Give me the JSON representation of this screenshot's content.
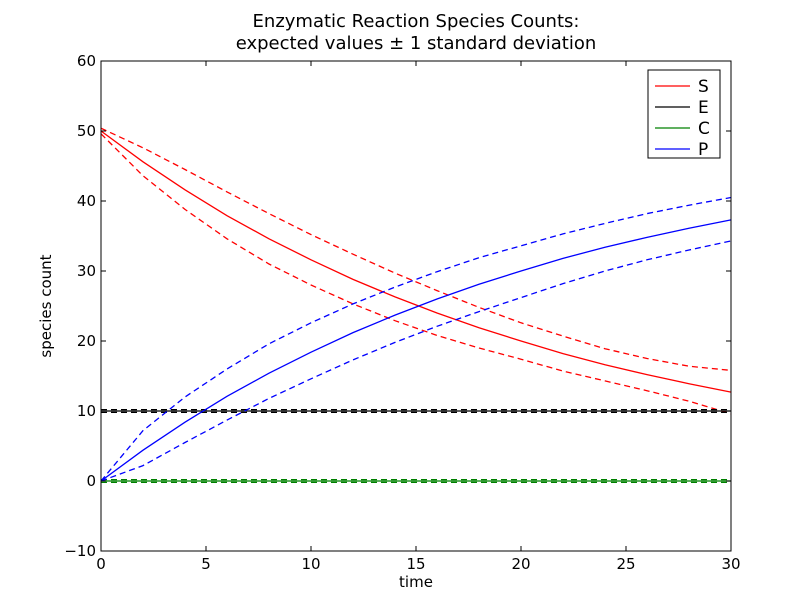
{
  "chart_data": {
    "type": "line",
    "title_line1": "Enzymatic Reaction Species Counts:",
    "title_line2": "expected values ± 1 standard deviation",
    "xlabel": "time",
    "ylabel": "species count",
    "xlim": [
      0,
      30
    ],
    "ylim": [
      -10,
      60
    ],
    "xticks": [
      0,
      5,
      10,
      15,
      20,
      25,
      30
    ],
    "yticks": [
      -10,
      0,
      10,
      20,
      30,
      40,
      50,
      60
    ],
    "yticks_labels": [
      "−10",
      "0",
      "10",
      "20",
      "30",
      "40",
      "50",
      "60"
    ],
    "grid": false,
    "legend_position": "top-right",
    "x": [
      0,
      2,
      4,
      6,
      8,
      10,
      12,
      14,
      16,
      18,
      20,
      22,
      24,
      26,
      28,
      30
    ],
    "series": [
      {
        "name": "S",
        "color": "#ff0000",
        "mean": [
          50.0,
          45.6,
          41.6,
          37.9,
          34.6,
          31.6,
          28.8,
          26.3,
          24.0,
          21.9,
          20.0,
          18.2,
          16.6,
          15.2,
          13.9,
          12.7
        ],
        "upper": [
          50.4,
          47.6,
          44.5,
          41.3,
          38.2,
          35.2,
          32.4,
          29.7,
          27.2,
          24.8,
          22.6,
          20.7,
          18.9,
          17.5,
          16.4,
          15.8
        ],
        "lower": [
          49.6,
          43.6,
          38.8,
          34.6,
          31.0,
          28.0,
          25.3,
          22.9,
          20.8,
          19.0,
          17.4,
          15.7,
          14.3,
          12.9,
          11.4,
          9.6
        ]
      },
      {
        "name": "E",
        "color": "#000000",
        "mean": [
          10.0,
          10.0,
          10.0,
          10.0,
          10.0,
          10.0,
          10.0,
          10.0,
          10.0,
          10.0,
          10.0,
          10.0,
          10.0,
          10.0,
          10.0,
          10.0
        ],
        "upper": [
          10.2,
          10.2,
          10.2,
          10.2,
          10.2,
          10.2,
          10.2,
          10.2,
          10.2,
          10.2,
          10.2,
          10.2,
          10.2,
          10.2,
          10.2,
          10.2
        ],
        "lower": [
          9.8,
          9.8,
          9.8,
          9.8,
          9.8,
          9.8,
          9.8,
          9.8,
          9.8,
          9.8,
          9.8,
          9.8,
          9.8,
          9.8,
          9.8,
          9.8
        ]
      },
      {
        "name": "C",
        "color": "#008000",
        "mean": [
          0.0,
          0.0,
          0.0,
          0.0,
          0.0,
          0.0,
          0.0,
          0.0,
          0.0,
          0.0,
          0.0,
          0.0,
          0.0,
          0.0,
          0.0,
          0.0
        ],
        "upper": [
          0.2,
          0.2,
          0.2,
          0.2,
          0.2,
          0.2,
          0.2,
          0.2,
          0.2,
          0.2,
          0.2,
          0.2,
          0.2,
          0.2,
          0.2,
          0.2
        ],
        "lower": [
          -0.2,
          -0.2,
          -0.2,
          -0.2,
          -0.2,
          -0.2,
          -0.2,
          -0.2,
          -0.2,
          -0.2,
          -0.2,
          -0.2,
          -0.2,
          -0.2,
          -0.2,
          -0.2
        ]
      },
      {
        "name": "P",
        "color": "#0000ff",
        "mean": [
          0.0,
          4.4,
          8.4,
          12.1,
          15.4,
          18.4,
          21.2,
          23.7,
          26.0,
          28.1,
          30.0,
          31.8,
          33.4,
          34.8,
          36.1,
          37.3
        ],
        "upper": [
          0.0,
          7.2,
          12.0,
          16.0,
          19.6,
          22.6,
          25.3,
          27.7,
          29.9,
          31.9,
          33.6,
          35.3,
          36.8,
          38.2,
          39.4,
          40.5
        ],
        "lower": [
          0.0,
          2.2,
          5.5,
          8.7,
          11.8,
          14.6,
          17.3,
          19.8,
          22.1,
          24.2,
          26.2,
          28.2,
          30.0,
          31.6,
          33.0,
          34.3
        ]
      }
    ]
  }
}
